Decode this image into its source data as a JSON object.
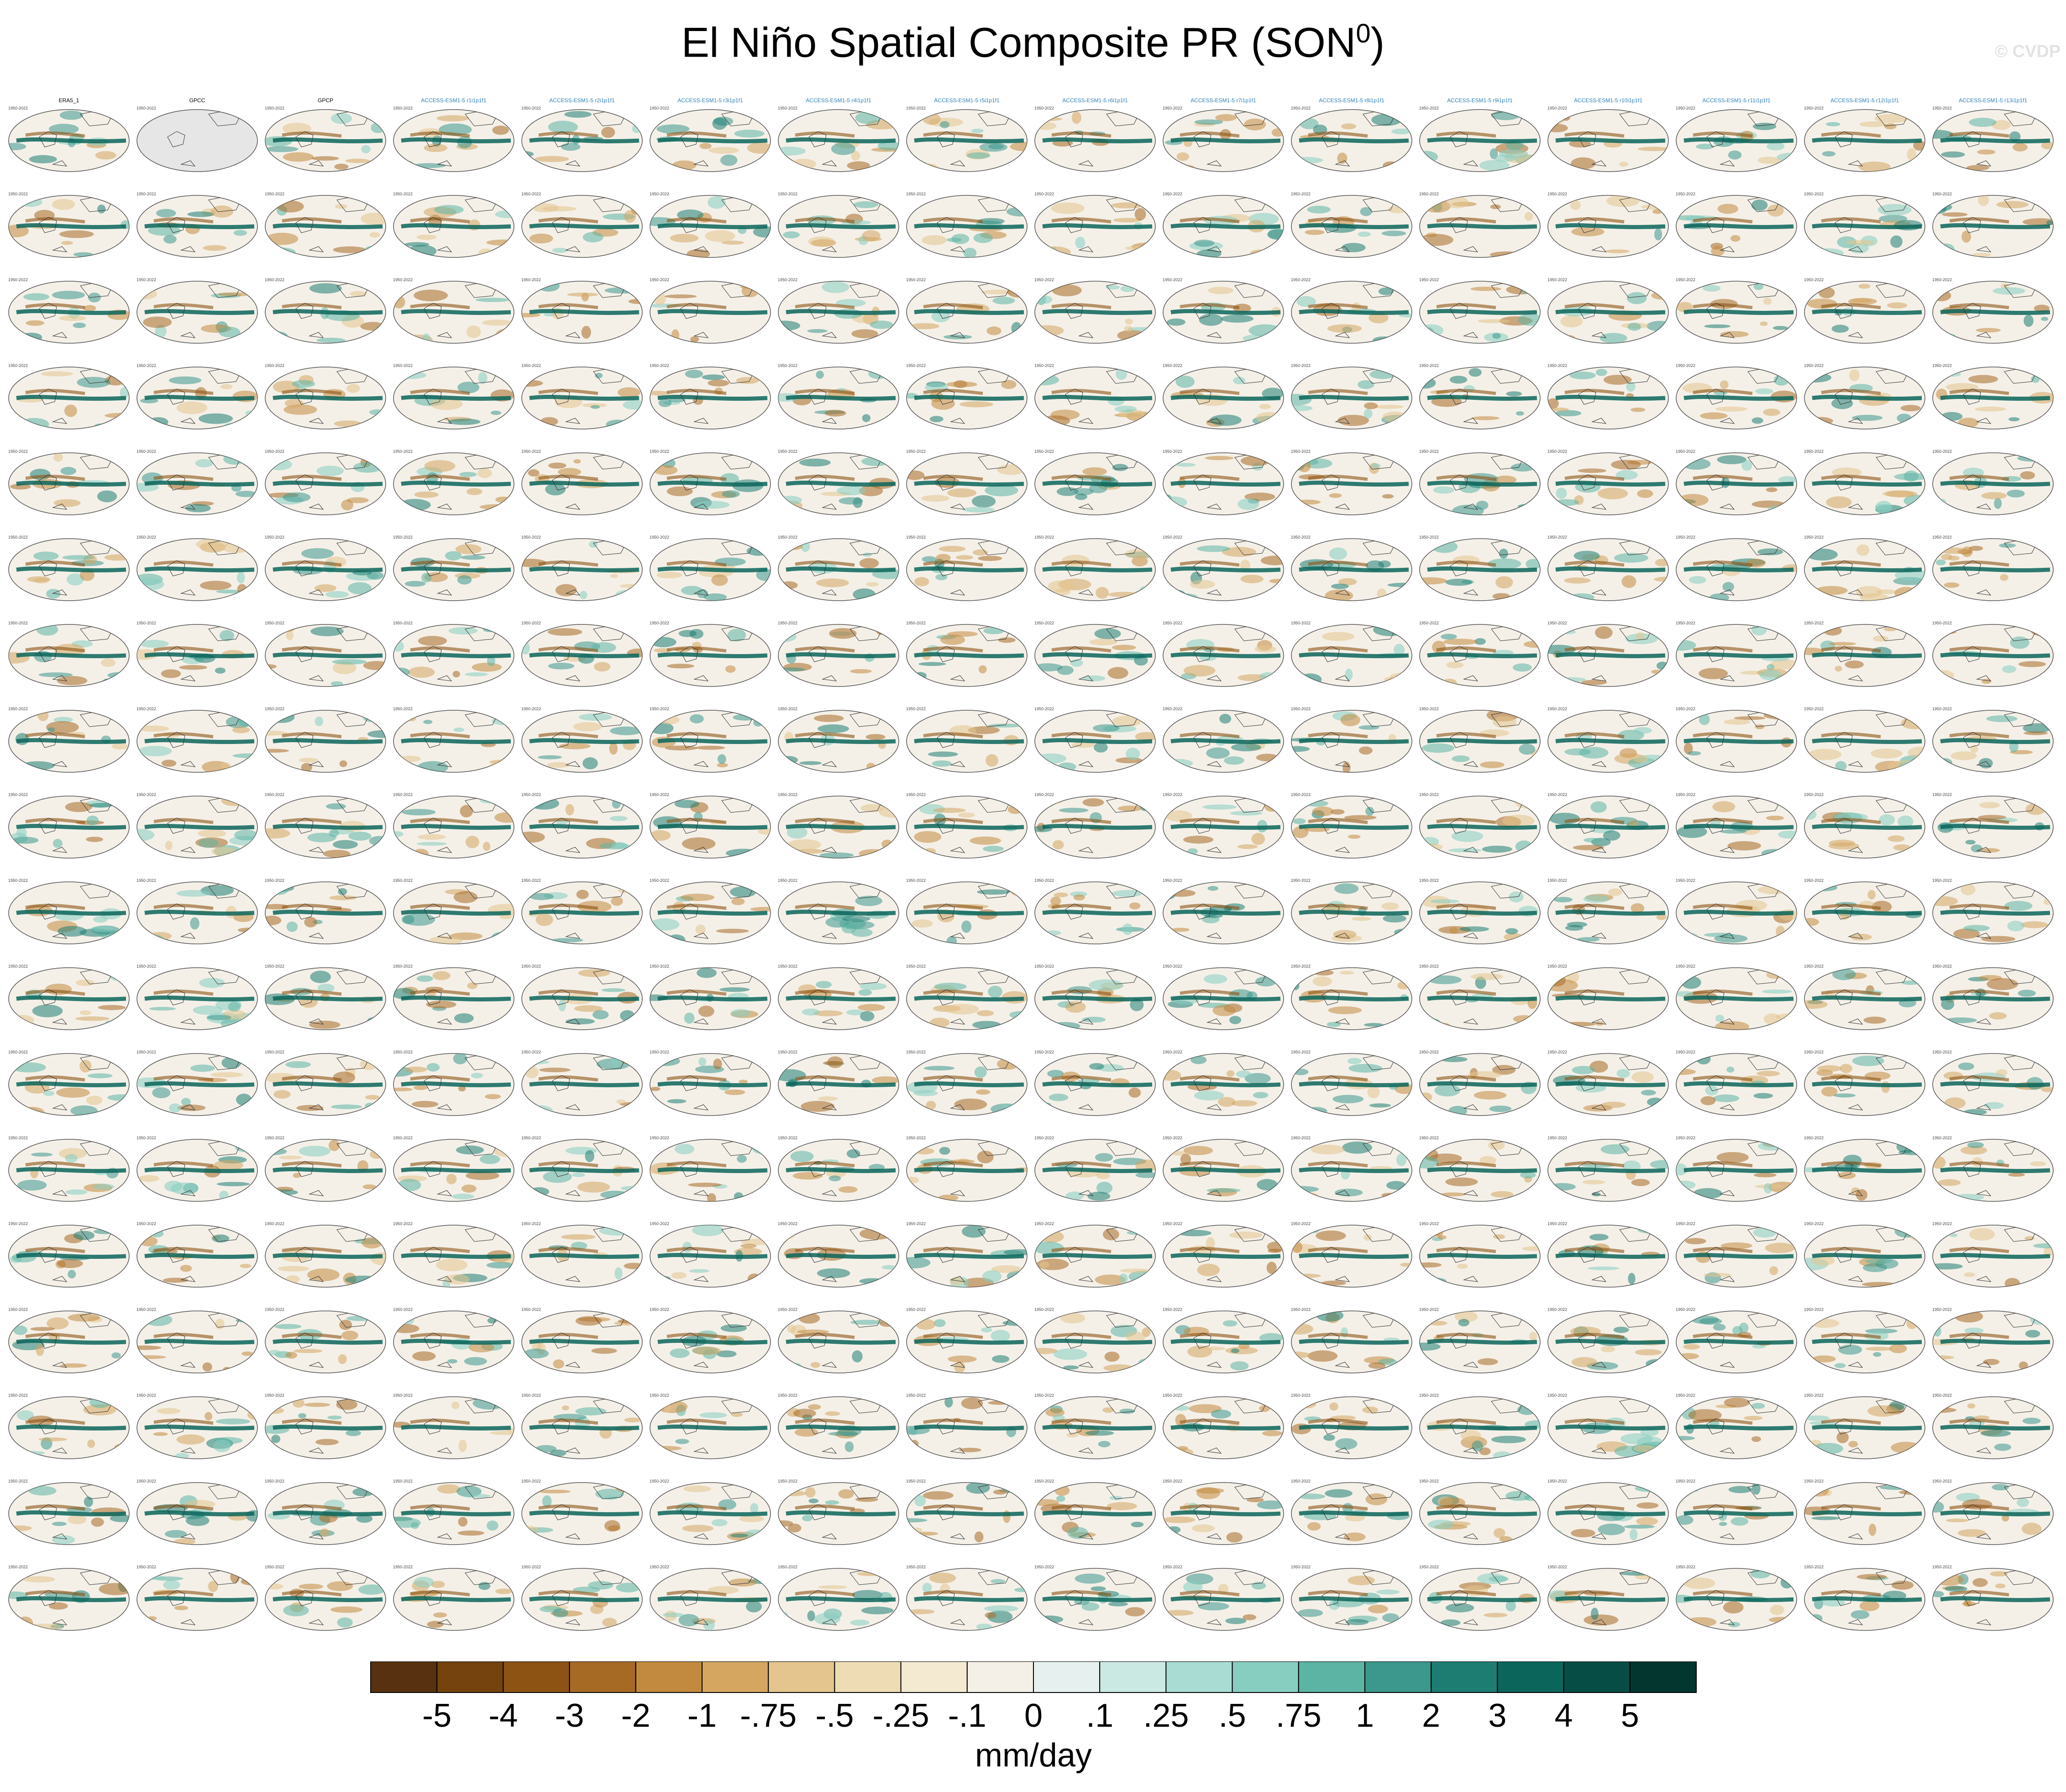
{
  "title": "El Niño Spatial Composite PR (SON",
  "title_sup": "0",
  "title_end": ")",
  "watermark": "© CVDP",
  "chart_data": {
    "type": "heatmap",
    "description_of_layout": "panel grid",
    "rows": 18,
    "cols": 16,
    "panels_row1": [
      "ERA5_1",
      "GPCC",
      "GPCP",
      "ACCESS-ESM1-5 r1i1p1f1",
      "ACCESS-ESM1-5 r2i1p1f1",
      "ACCESS-ESM1-5 r3i1p1f1",
      "ACCESS-ESM1-5 r4i1p1f1",
      "ACCESS-ESM1-5 r5i1p1f1",
      "ACCESS-ESM1-5 r6i1p1f1",
      "ACCESS-ESM1-5 r7i1p1f1",
      "ACCESS-ESM1-5 r8i1p1f1",
      "ACCESS-ESM1-5 r9i1p1f1",
      "ACCESS-ESM1-5 r10i1p1f1",
      "ACCESS-ESM1-5 r11i1p1f1",
      "ACCESS-ESM1-5 r12i1p1f1",
      "ACCESS-ESM1-5 r13i1p1f1"
    ],
    "panel_period": "1950-2022",
    "colorbar": {
      "labels": [
        "-5",
        "-4",
        "-3",
        "-2",
        "-1",
        "-.75",
        "-.5",
        "-.25",
        "-.1",
        "0",
        ".1",
        ".25",
        ".5",
        ".75",
        "1",
        "2",
        "3",
        "4",
        "5"
      ],
      "colors": [
        "#583210",
        "#74430e",
        "#8c5312",
        "#a76a24",
        "#c28a3e",
        "#d4a660",
        "#e3c58d",
        "#eedcb4",
        "#f4ead2",
        "#f4f0e8",
        "#e6f1ef",
        "#cbe9e3",
        "#a9ddd3",
        "#87cec1",
        "#5cb4a4",
        "#3c978c",
        "#1e7d73",
        "#0b655b",
        "#064e45",
        "#02362f"
      ],
      "unit_label": "mm/day"
    }
  }
}
